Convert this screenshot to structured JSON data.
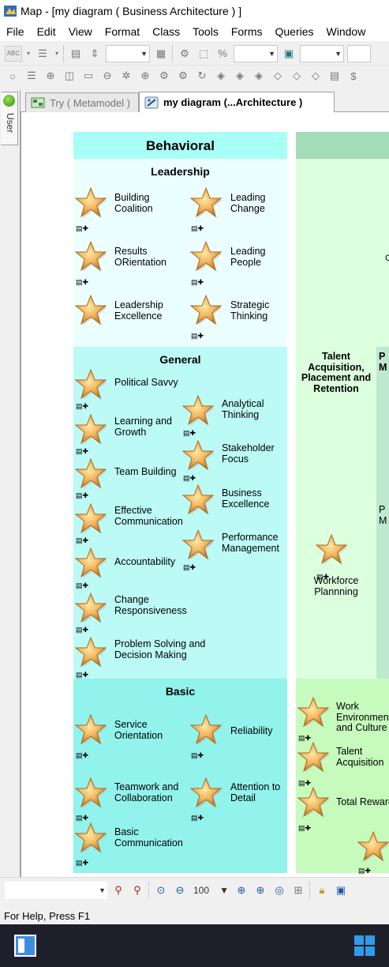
{
  "window": {
    "title": "Map - [my diagram ( Business Architecture ) ]"
  },
  "menu": [
    "File",
    "Edit",
    "View",
    "Format",
    "Class",
    "Tools",
    "Forms",
    "Queries",
    "Window"
  ],
  "toolbar": {
    "zoom": "100"
  },
  "side_tab": "User",
  "tabs": [
    {
      "label": "Try ( Metamodel )"
    },
    {
      "label": "my diagram (...Architecture )"
    }
  ],
  "status": "For Help, Press F1",
  "diagram": {
    "behavioral_title": "Behavioral",
    "leadership": {
      "title": "Leadership",
      "items": [
        "Building Coalition",
        "Leading Change",
        "Results ORientation",
        "Leading People",
        "Leadership Excellence",
        "Strategic Thinking"
      ]
    },
    "general": {
      "title": "General",
      "items": [
        "Political Savvy",
        "Analytical Thinking",
        "Learning and Growth",
        "Stakeholder Focus",
        "Team Building",
        "Business Excellence",
        "Effective Communication",
        "Performance Management",
        "Accountability",
        "Change Responsiveness",
        "Problem Solving and Decision Making"
      ]
    },
    "basic": {
      "title": "Basic",
      "items": [
        "Service Orientation",
        "Reliability",
        "Teamwork and Collaboration",
        "Attention to Detail",
        "Basic Communication"
      ]
    },
    "right": {
      "talent_title": "Talent Acquisition, Placement and Retention",
      "col2_head_partial": "P\nM",
      "col2_partial_1": "C",
      "col2_partial_2": "P\nM",
      "workforce": "Workforce Plannning",
      "items": [
        "Work Environment and Culture",
        "Talent Acquisition",
        "Total Rewards"
      ]
    }
  },
  "colors": {
    "behavioral_header": "#a8fff5",
    "leadership_bg": "#ecffff",
    "general_bg": "#bcfaf6",
    "basic_bg": "#92f2ec",
    "right_header": "#a2dcb8",
    "talent_bg": "#dcffde",
    "right_bottom": "#c6fbbd",
    "col2_bg": "#bfe9ce"
  }
}
